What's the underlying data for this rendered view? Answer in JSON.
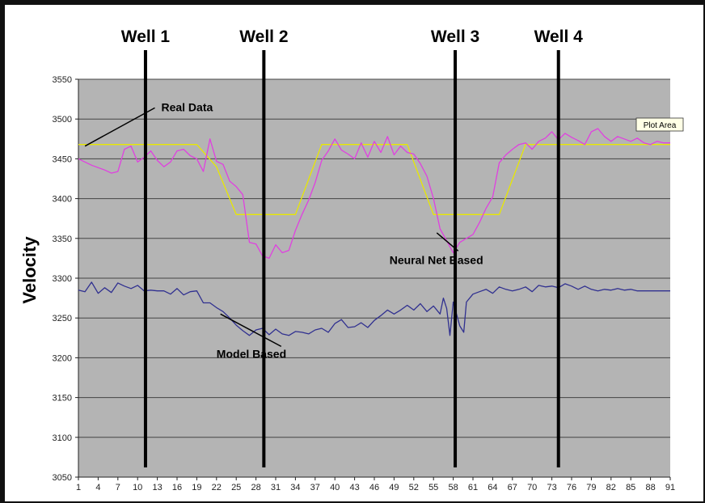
{
  "chart_data": {
    "type": "line",
    "title": "",
    "xlabel": "",
    "ylabel": "Velocity",
    "ylim": [
      3050,
      3550
    ],
    "yticks": [
      3050,
      3100,
      3150,
      3200,
      3250,
      3300,
      3350,
      3400,
      3450,
      3500,
      3550
    ],
    "xlim": [
      1,
      91
    ],
    "xticks": [
      1,
      4,
      7,
      10,
      13,
      16,
      19,
      22,
      25,
      28,
      31,
      34,
      37,
      40,
      43,
      46,
      49,
      52,
      55,
      58,
      61,
      64,
      67,
      70,
      73,
      76,
      79,
      82,
      85,
      88,
      91
    ],
    "grid": true,
    "colors": {
      "real": "#e8e800",
      "neural": "#e040e0",
      "model": "#303090",
      "plot_bg": "#b4b4b4",
      "grid": "#444444"
    },
    "series": [
      {
        "key": "real",
        "x": [
          1,
          19,
          22,
          25,
          34,
          38,
          51,
          55,
          65,
          69,
          91
        ],
        "values": [
          3468,
          3468,
          3440,
          3380,
          3380,
          3468,
          3468,
          3380,
          3380,
          3468,
          3468
        ]
      },
      {
        "key": "neural",
        "x": [
          1,
          3,
          5,
          6,
          7,
          8,
          9,
          10,
          11,
          12,
          13,
          14,
          15,
          16,
          17,
          18,
          19,
          20,
          21,
          22,
          23,
          24,
          25,
          26,
          27,
          28,
          29,
          30,
          31,
          32,
          33,
          34,
          35,
          36,
          37,
          38,
          39,
          40,
          41,
          42,
          43,
          44,
          45,
          46,
          47,
          48,
          49,
          50,
          51,
          52,
          53,
          54,
          55,
          56,
          57,
          58,
          59,
          60,
          61,
          62,
          63,
          64,
          65,
          66,
          67,
          68,
          69,
          70,
          71,
          72,
          73,
          74,
          75,
          76,
          77,
          78,
          79,
          80,
          81,
          82,
          83,
          84,
          85,
          86,
          87,
          88,
          89,
          90,
          91
        ],
        "values": [
          3450,
          3442,
          3436,
          3432,
          3434,
          3462,
          3466,
          3446,
          3452,
          3460,
          3448,
          3440,
          3446,
          3460,
          3462,
          3454,
          3450,
          3434,
          3475,
          3447,
          3443,
          3422,
          3415,
          3405,
          3345,
          3343,
          3328,
          3325,
          3342,
          3332,
          3335,
          3360,
          3380,
          3398,
          3420,
          3448,
          3460,
          3475,
          3461,
          3456,
          3450,
          3470,
          3452,
          3472,
          3458,
          3478,
          3455,
          3466,
          3458,
          3456,
          3444,
          3428,
          3400,
          3362,
          3347,
          3332,
          3345,
          3350,
          3355,
          3370,
          3388,
          3402,
          3445,
          3455,
          3462,
          3468,
          3470,
          3462,
          3472,
          3476,
          3484,
          3474,
          3482,
          3477,
          3473,
          3468,
          3484,
          3488,
          3478,
          3472,
          3478,
          3475,
          3472,
          3476,
          3470,
          3468,
          3472,
          3470,
          3470
        ]
      },
      {
        "key": "model",
        "x": [
          1,
          2,
          3,
          4,
          5,
          6,
          7,
          8,
          9,
          10,
          11,
          12,
          13,
          14,
          15,
          16,
          17,
          18,
          19,
          20,
          21,
          22,
          23,
          24,
          25,
          26,
          27,
          28,
          29,
          30,
          31,
          32,
          33,
          34,
          35,
          36,
          37,
          38,
          39,
          40,
          41,
          42,
          43,
          44,
          45,
          46,
          47,
          48,
          49,
          50,
          51,
          52,
          53,
          54,
          55,
          56,
          56.5,
          57,
          57.5,
          58,
          59,
          59.6,
          60,
          61,
          62,
          63,
          64,
          65,
          66,
          67,
          68,
          69,
          70,
          71,
          72,
          73,
          74,
          75,
          76,
          77,
          78,
          79,
          80,
          81,
          82,
          83,
          84,
          85,
          86,
          87,
          88,
          89,
          90,
          91
        ],
        "values": [
          3285,
          3283,
          3295,
          3281,
          3288,
          3282,
          3294,
          3290,
          3287,
          3291,
          3284,
          3285,
          3284,
          3284,
          3280,
          3287,
          3279,
          3283,
          3284,
          3269,
          3269,
          3263,
          3258,
          3250,
          3241,
          3234,
          3228,
          3235,
          3237,
          3229,
          3236,
          3230,
          3228,
          3233,
          3232,
          3230,
          3235,
          3237,
          3232,
          3243,
          3248,
          3238,
          3239,
          3244,
          3238,
          3247,
          3253,
          3260,
          3255,
          3260,
          3266,
          3260,
          3268,
          3258,
          3265,
          3255,
          3275,
          3262,
          3228,
          3270,
          3240,
          3232,
          3270,
          3280,
          3283,
          3286,
          3281,
          3289,
          3286,
          3284,
          3286,
          3289,
          3283,
          3291,
          3289,
          3290,
          3288,
          3293,
          3290,
          3286,
          3290,
          3286,
          3284,
          3286,
          3285,
          3287,
          3285,
          3286,
          3284,
          3284,
          3284,
          3284,
          3284,
          3284
        ]
      }
    ],
    "wells": [
      {
        "label": "Well 1",
        "x": 11.2
      },
      {
        "label": "Well 2",
        "x": 29.2
      },
      {
        "label": "Well 3",
        "x": 58.3
      },
      {
        "label": "Well 4",
        "x": 74.0
      }
    ],
    "annotations": [
      {
        "text": "Real Data",
        "at": [
          2,
          3466
        ],
        "text_at": [
          13.6,
          3510
        ]
      },
      {
        "text": "Neural Net Based",
        "at": [
          55.5,
          3357
        ],
        "text_at": [
          48.3,
          3318
        ]
      },
      {
        "text": "Model Based",
        "at": [
          22.6,
          3255
        ],
        "text_at": [
          22,
          3200
        ]
      }
    ],
    "tooltip": "Plot Area"
  }
}
